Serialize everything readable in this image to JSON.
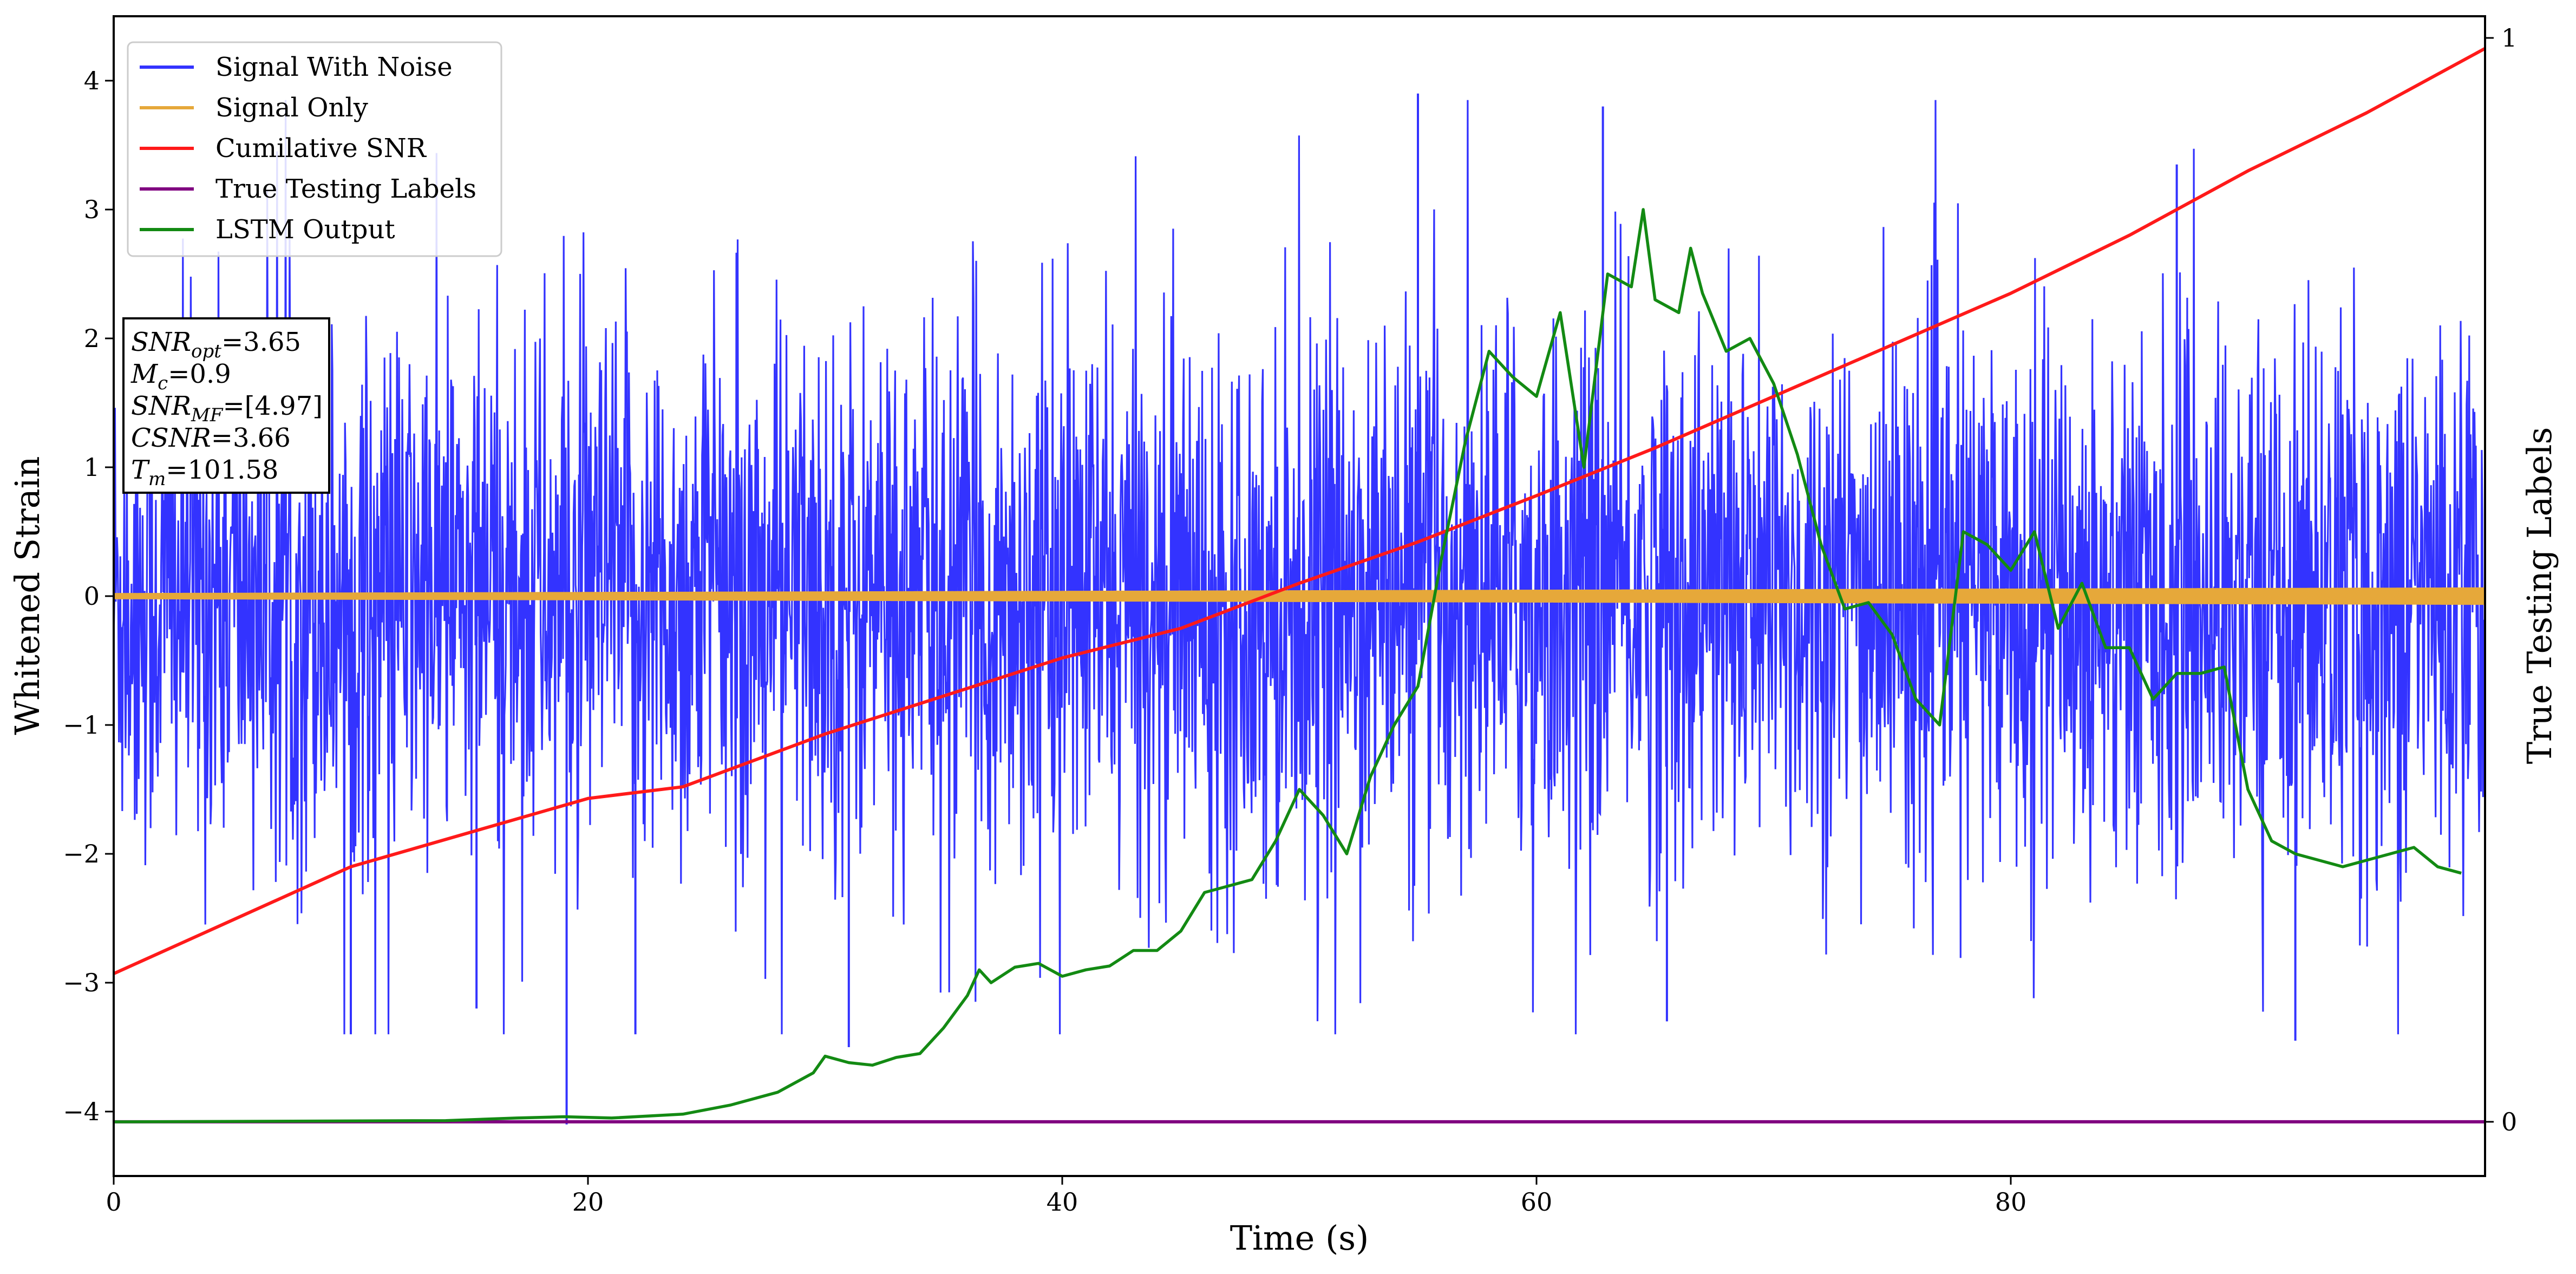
{
  "chart_data": {
    "type": "line",
    "xlabel": "Time (s)",
    "ylabel": "Whitened Strain",
    "y2label": "True Testing Labels",
    "xlim": [
      0,
      100
    ],
    "ylim": [
      -4.5,
      4.5
    ],
    "y2lim": [
      -0.05,
      1.02
    ],
    "xticks": [
      0,
      20,
      40,
      60,
      80
    ],
    "yticks": [
      -4,
      -3,
      -2,
      -1,
      0,
      1,
      2,
      3,
      4
    ],
    "y2ticks": [
      0,
      1
    ],
    "legend_position": "upper-left",
    "grid": false,
    "colors": {
      "signal_with_noise": "#3333ff",
      "signal_only": "#e6a83a",
      "cumulative_snr": "#ff1a1a",
      "true_labels": "#800080",
      "lstm_output": "#138a13"
    },
    "series": [
      {
        "key": "signal_with_noise",
        "name": "Signal With Noise",
        "axis": "left",
        "note": "noise band approx mean 0, spans about -2.6 to 3.9"
      },
      {
        "key": "signal_only",
        "name": "Signal Only",
        "axis": "left",
        "note": "near zero, amplitude ~0.03-0.06"
      },
      {
        "key": "cumulative_snr",
        "name": "Cumilative SNR",
        "axis": "left",
        "x": [
          0,
          10,
          20,
          24,
          30,
          40,
          45,
          50,
          55,
          60,
          65,
          70,
          75,
          80,
          85,
          90,
          95,
          100
        ],
        "y": [
          -2.93,
          -2.1,
          -1.57,
          -1.48,
          -1.07,
          -0.48,
          -0.25,
          0.1,
          0.42,
          0.78,
          1.15,
          1.55,
          1.95,
          2.35,
          2.8,
          3.3,
          3.75,
          4.25
        ]
      },
      {
        "key": "true_labels",
        "name": "True Testing Labels",
        "axis": "right",
        "x": [
          0,
          100
        ],
        "y": [
          0,
          0
        ]
      },
      {
        "key": "lstm_output",
        "name": "LSTM Output",
        "axis": "left",
        "x": [
          0,
          14,
          17,
          19,
          21,
          24,
          26,
          28,
          29.5,
          30,
          31,
          32,
          33,
          34,
          35,
          36,
          36.5,
          37,
          38,
          39,
          40,
          41,
          42,
          43,
          44,
          45,
          46,
          47,
          48,
          49,
          50,
          51,
          52,
          53,
          54,
          55,
          56,
          57,
          58,
          59,
          60,
          61,
          62,
          63,
          64,
          64.5,
          65,
          66,
          66.5,
          67,
          68,
          69,
          70,
          71,
          72,
          73,
          74,
          75,
          76,
          77,
          78,
          79,
          80,
          81,
          82,
          83,
          84,
          85,
          86,
          87,
          88,
          89,
          90,
          91,
          92,
          93,
          94,
          95,
          96,
          97,
          98,
          99
        ],
        "y": [
          -4.08,
          -4.07,
          -4.05,
          -4.04,
          -4.05,
          -4.02,
          -3.95,
          -3.85,
          -3.7,
          -3.57,
          -3.62,
          -3.64,
          -3.58,
          -3.55,
          -3.35,
          -3.1,
          -2.9,
          -3.0,
          -2.88,
          -2.85,
          -2.95,
          -2.9,
          -2.87,
          -2.75,
          -2.75,
          -2.6,
          -2.3,
          -2.25,
          -2.2,
          -1.9,
          -1.5,
          -1.7,
          -2.0,
          -1.4,
          -1.0,
          -0.7,
          0.3,
          1.2,
          1.9,
          1.7,
          1.55,
          2.2,
          1.0,
          2.5,
          2.4,
          3.0,
          2.3,
          2.2,
          2.7,
          2.35,
          1.9,
          2.0,
          1.65,
          1.1,
          0.4,
          -0.1,
          -0.05,
          -0.3,
          -0.8,
          -1.0,
          0.5,
          0.4,
          0.2,
          0.5,
          -0.25,
          0.1,
          -0.4,
          -0.4,
          -0.8,
          -0.6,
          -0.6,
          -0.55,
          -1.5,
          -1.9,
          -2.0,
          -2.05,
          -2.1,
          -2.05,
          -2.0,
          -1.95,
          -2.1,
          -2.15
        ]
      }
    ],
    "annotation": [
      {
        "base": "SNR",
        "sub": "opt",
        "value": "=3.65"
      },
      {
        "base": "M",
        "sub": "c",
        "value": "=0.9"
      },
      {
        "base": "SNR",
        "sub": "MF",
        "value": "=[4.97]"
      },
      {
        "base": "CSNR",
        "sub": "",
        "value": "=3.66"
      },
      {
        "base": "T",
        "sub": "m",
        "value": "=101.58"
      }
    ]
  }
}
